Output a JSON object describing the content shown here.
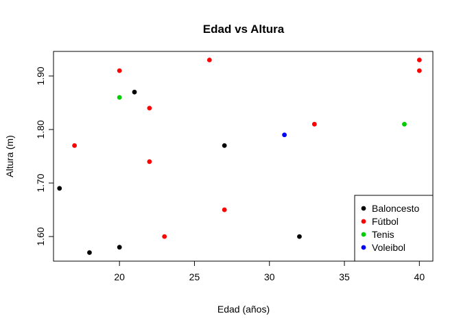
{
  "chart_data": {
    "type": "scatter",
    "title": "Edad vs Altura",
    "xlabel": "Edad (años)",
    "ylabel": "Altura (m)",
    "xlim": [
      15.6,
      40.9
    ],
    "ylim": [
      1.554,
      1.946
    ],
    "x_ticks": [
      20,
      25,
      30,
      35,
      40
    ],
    "y_ticks": [
      1.6,
      1.7,
      1.8,
      1.9
    ],
    "x_tick_labels": [
      "20",
      "25",
      "30",
      "35",
      "40"
    ],
    "y_tick_labels": [
      "1.60",
      "1.70",
      "1.80",
      "1.90"
    ],
    "grid": false,
    "legend_position": "bottom-right",
    "series": [
      {
        "name": "Baloncesto",
        "color": "#000000",
        "points": [
          [
            16,
            1.69
          ],
          [
            18,
            1.57
          ],
          [
            20,
            1.58
          ],
          [
            21,
            1.87
          ],
          [
            27,
            1.77
          ],
          [
            32,
            1.6
          ]
        ]
      },
      {
        "name": "Fútbol",
        "color": "#ff0000",
        "points": [
          [
            17,
            1.77
          ],
          [
            20,
            1.91
          ],
          [
            22,
            1.84
          ],
          [
            22,
            1.74
          ],
          [
            23,
            1.6
          ],
          [
            26,
            1.93
          ],
          [
            27,
            1.65
          ],
          [
            33,
            1.81
          ],
          [
            40,
            1.93
          ],
          [
            40,
            1.91
          ]
        ]
      },
      {
        "name": "Tenis",
        "color": "#00cd00",
        "points": [
          [
            20,
            1.86
          ],
          [
            39,
            1.81
          ]
        ]
      },
      {
        "name": "Voleibol",
        "color": "#0000ff",
        "points": [
          [
            31,
            1.79
          ]
        ]
      }
    ]
  }
}
